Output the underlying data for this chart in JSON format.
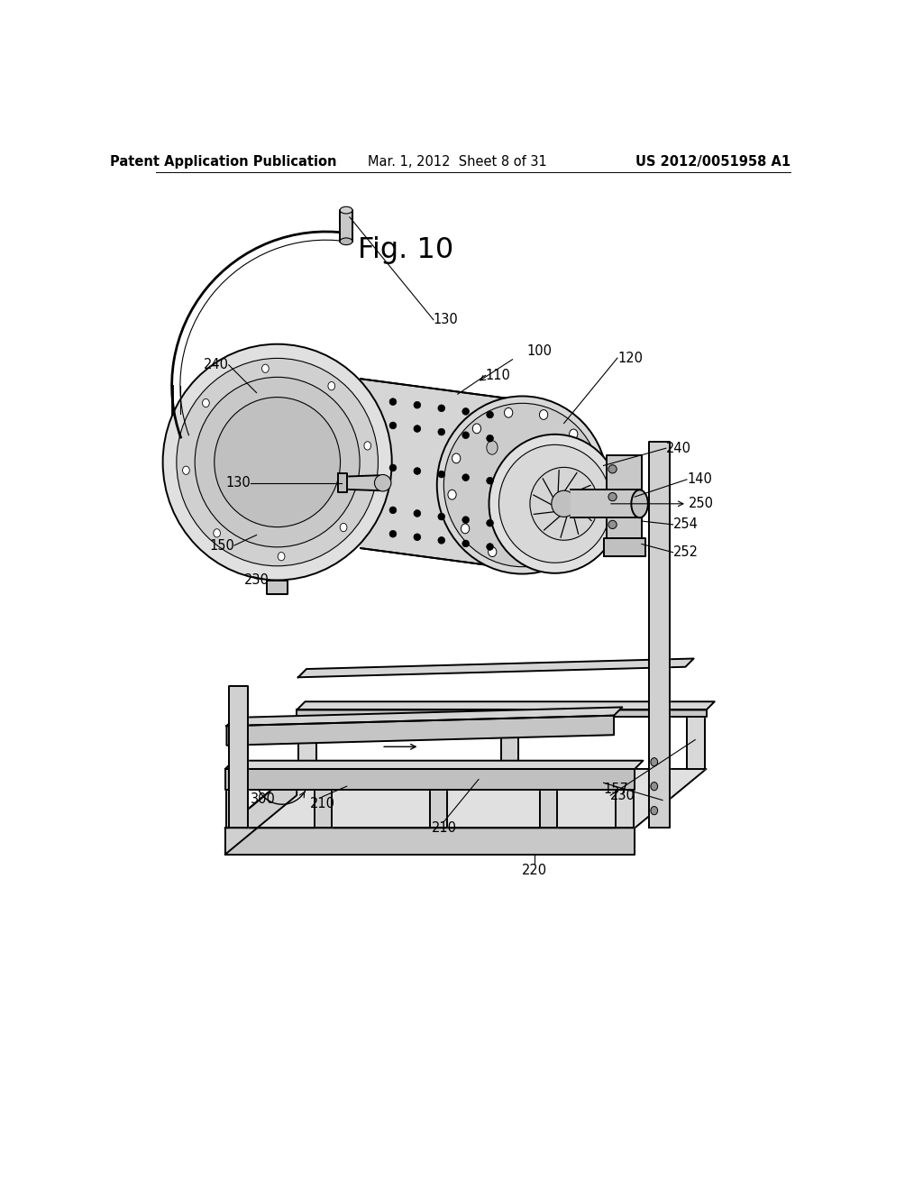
{
  "header_left": "Patent Application Publication",
  "header_center": "Mar. 1, 2012  Sheet 8 of 31",
  "header_right": "US 2012/0051958 A1",
  "figure_label": "Fig. 10",
  "bg": "#ffffff",
  "black": "#000000",
  "gray1": "#e8e8e8",
  "gray2": "#d0d0d0",
  "gray3": "#b8b8b8",
  "white": "#ffffff",
  "lw_main": 1.4,
  "lw_thin": 0.8,
  "lw_thick": 2.0,
  "lfs": 10.5
}
